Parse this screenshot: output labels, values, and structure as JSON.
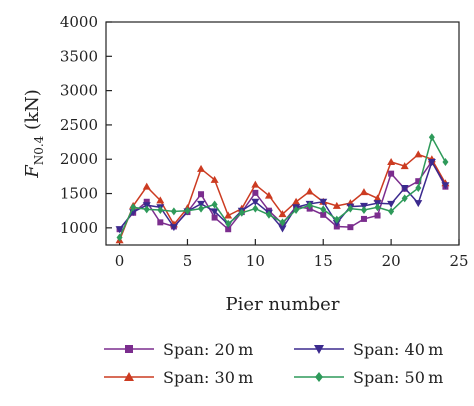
{
  "chart_data": {
    "type": "line",
    "xlabel": "Pier number",
    "ylabel": "F",
    "ylabel_sub": "N0.4",
    "ylabel_unit": " (kN)",
    "xlim": [
      -1,
      25
    ],
    "ylim": [
      750,
      4000
    ],
    "xticks": [
      0,
      5,
      10,
      15,
      20,
      25
    ],
    "yticks": [
      1000,
      1500,
      2000,
      2500,
      3000,
      3500,
      4000
    ],
    "grid": false,
    "legend_position": "bottom",
    "x": [
      0,
      1,
      2,
      3,
      4,
      5,
      6,
      7,
      8,
      9,
      10,
      11,
      12,
      13,
      14,
      15,
      16,
      17,
      18,
      19,
      20,
      21,
      22,
      23,
      24
    ],
    "series": [
      {
        "name": "Span: 20 m",
        "color": "#7b2d8e",
        "marker": "square",
        "values": [
          980,
          1220,
          1380,
          1080,
          1020,
          1230,
          1490,
          1150,
          980,
          1230,
          1510,
          1250,
          1060,
          1310,
          1280,
          1190,
          1020,
          1010,
          1130,
          1180,
          1790,
          1570,
          1680,
          1970,
          1600
        ]
      },
      {
        "name": "Span: 30 m",
        "color": "#cc3b21",
        "marker": "triangle-up",
        "values": [
          820,
          1320,
          1600,
          1400,
          1050,
          1290,
          1860,
          1700,
          1180,
          1280,
          1630,
          1470,
          1200,
          1380,
          1530,
          1380,
          1320,
          1360,
          1520,
          1430,
          1960,
          1900,
          2070,
          2000,
          1650
        ]
      },
      {
        "name": "Span: 40 m",
        "color": "#3b2a8e",
        "marker": "triangle-down",
        "values": [
          980,
          1230,
          1330,
          1300,
          1010,
          1240,
          1350,
          1240,
          1050,
          1250,
          1380,
          1220,
          990,
          1300,
          1350,
          1380,
          1070,
          1310,
          1320,
          1360,
          1350,
          1580,
          1360,
          1960,
          1620
        ]
      },
      {
        "name": "Span: 50 m",
        "color": "#2e9a5a",
        "marker": "diamond",
        "values": [
          860,
          1300,
          1270,
          1260,
          1240,
          1250,
          1280,
          1340,
          1060,
          1220,
          1280,
          1190,
          1080,
          1260,
          1330,
          1270,
          1120,
          1280,
          1260,
          1300,
          1240,
          1430,
          1580,
          2320,
          1960
        ]
      }
    ]
  }
}
